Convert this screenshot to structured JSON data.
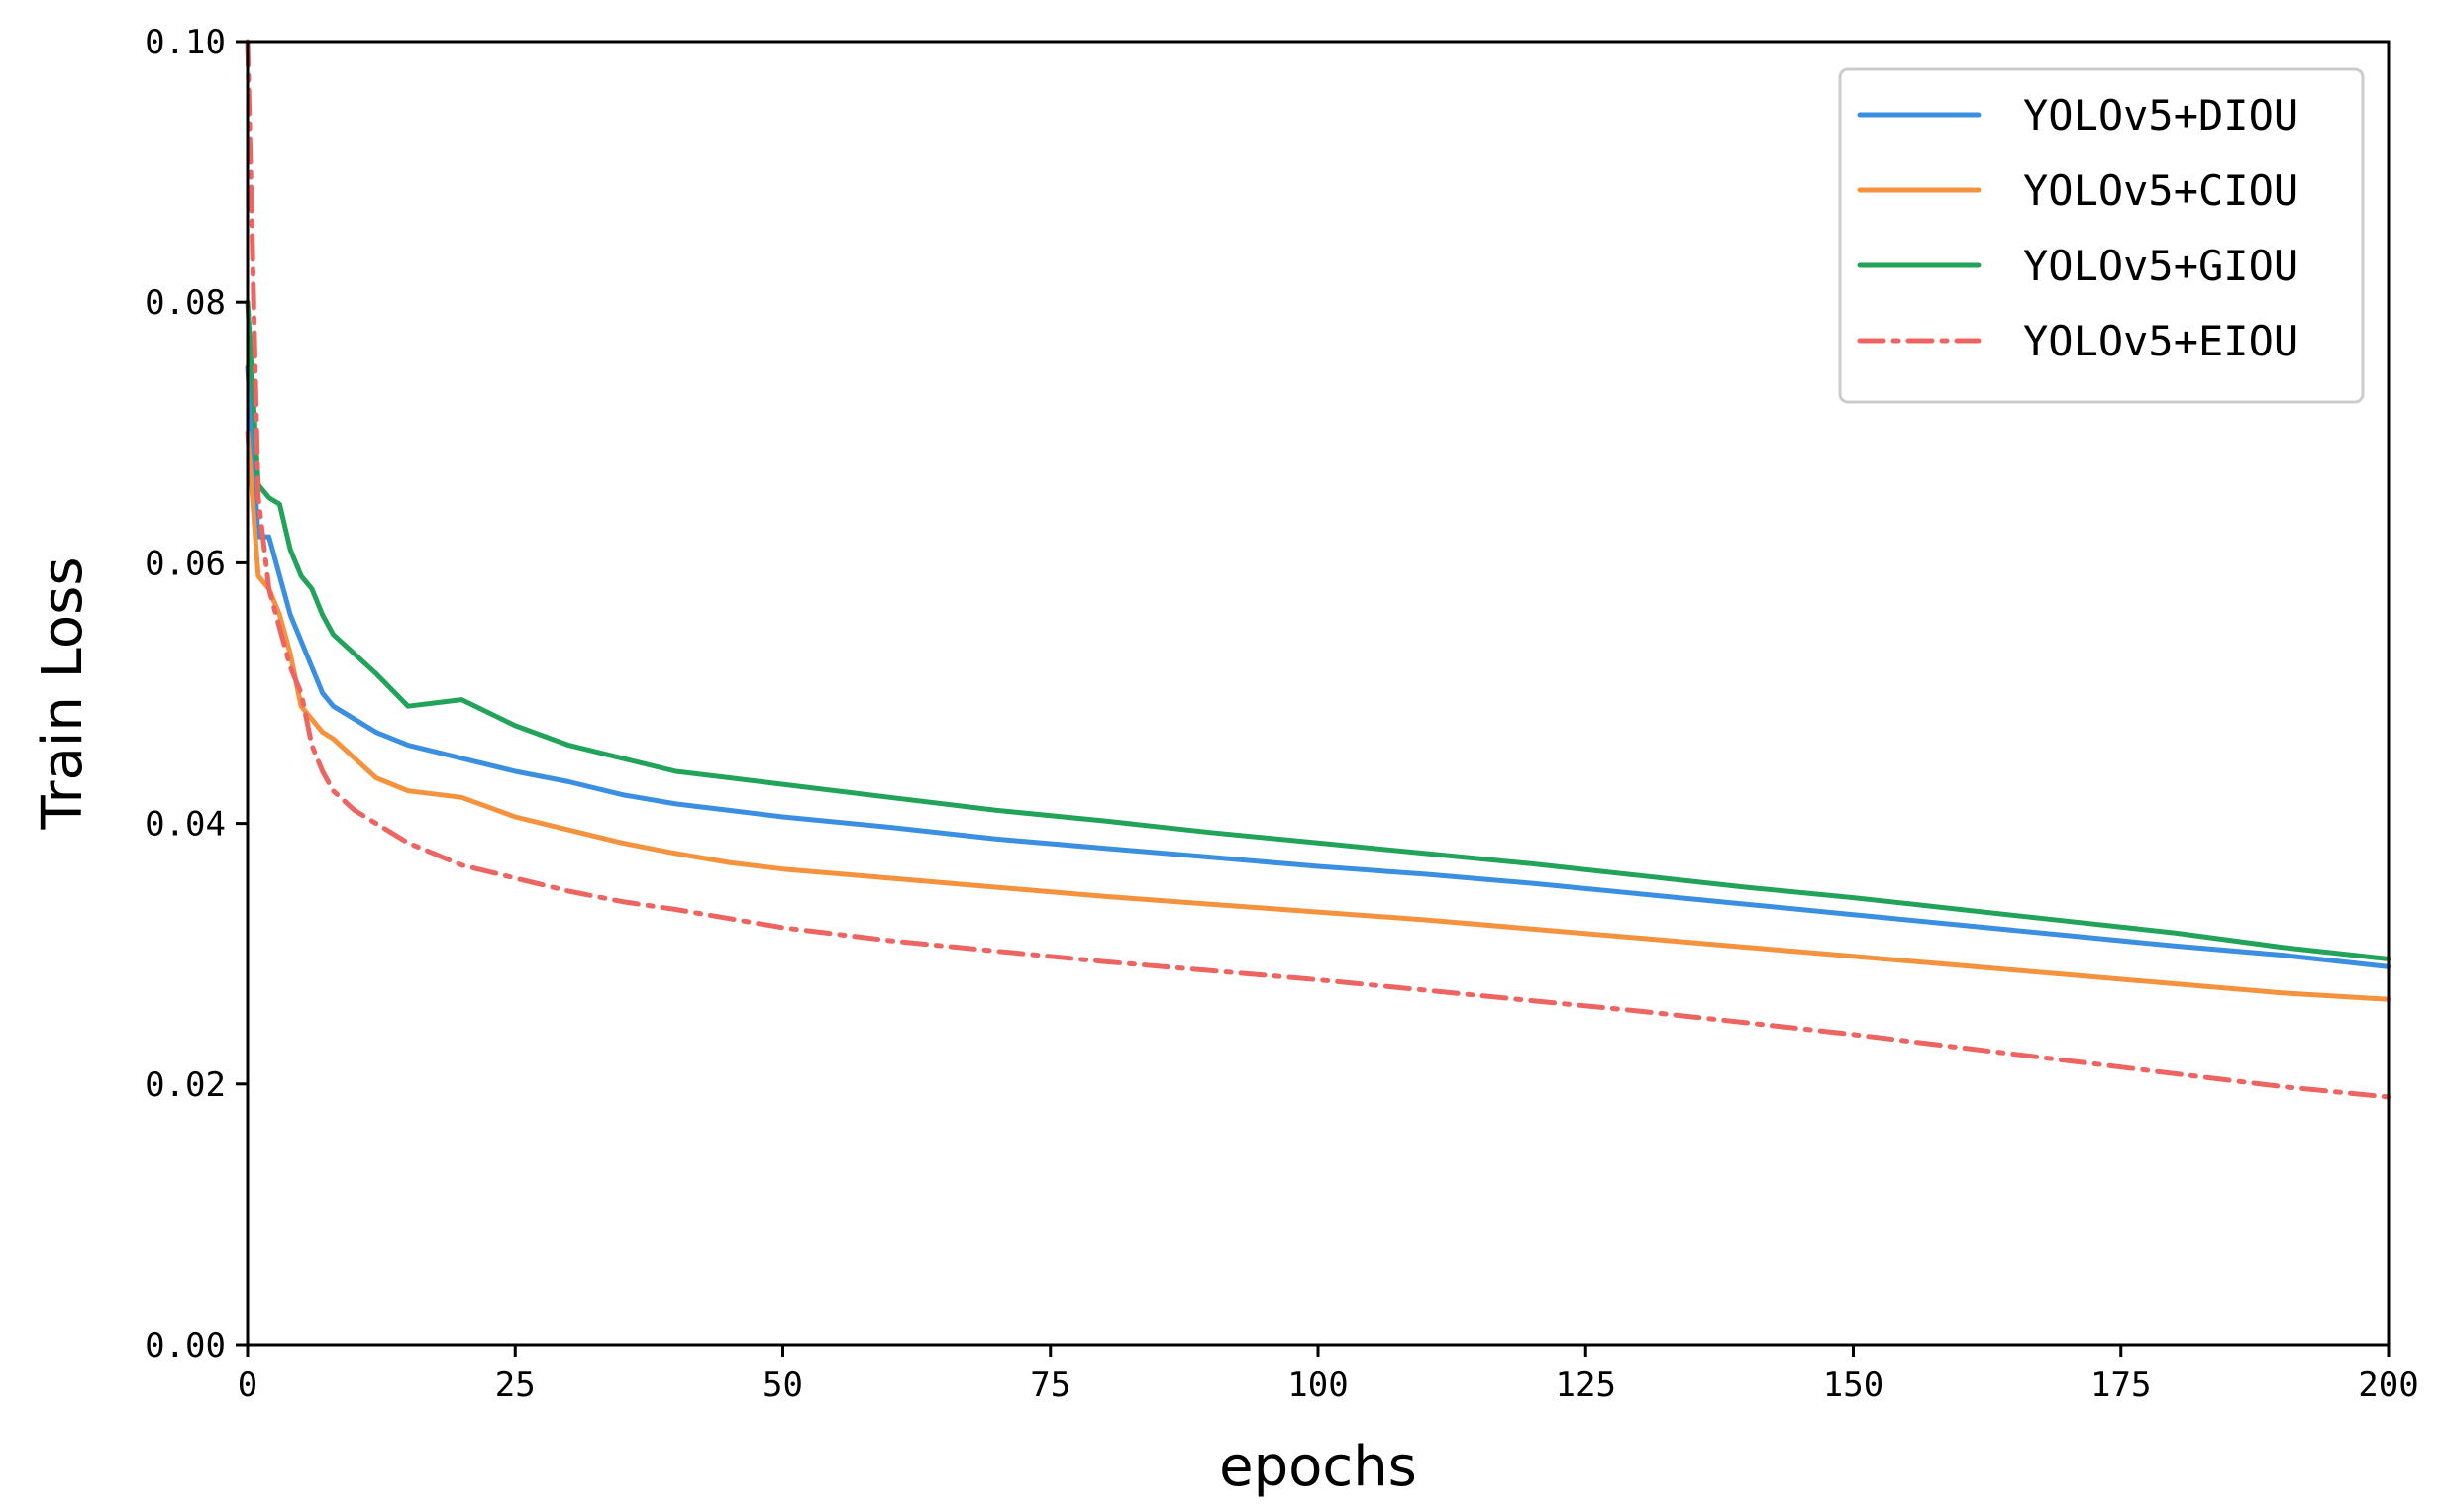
{
  "chart_data": {
    "type": "line",
    "title": "",
    "xlabel": "epochs",
    "ylabel": "Train Loss",
    "xlim": [
      0,
      200
    ],
    "ylim": [
      0.0,
      0.1
    ],
    "xticks": [
      0,
      25,
      50,
      75,
      100,
      125,
      150,
      175,
      200
    ],
    "xtick_labels": [
      "0",
      "25",
      "50",
      "75",
      "100",
      "125",
      "150",
      "175",
      "200"
    ],
    "yticks": [
      0.0,
      0.02,
      0.04,
      0.06,
      0.08,
      0.1
    ],
    "ytick_labels": [
      "0.00",
      "0.02",
      "0.04",
      "0.06",
      "0.08",
      "0.10"
    ],
    "grid": false,
    "legend_position": "top-right",
    "series": [
      {
        "name": "YOLOv5+DIOU",
        "color": "#3b8fe0",
        "dash": "solid",
        "x": [
          0,
          1,
          2,
          3,
          4,
          5,
          6,
          7,
          8,
          10,
          12,
          15,
          20,
          25,
          30,
          35,
          40,
          45,
          50,
          60,
          70,
          80,
          90,
          100,
          110,
          120,
          130,
          140,
          150,
          160,
          170,
          180,
          190,
          200
        ],
        "y": [
          0.075,
          0.062,
          0.062,
          0.059,
          0.056,
          0.054,
          0.052,
          0.05,
          0.049,
          0.048,
          0.047,
          0.046,
          0.045,
          0.044,
          0.0432,
          0.0422,
          0.0415,
          0.041,
          0.0405,
          0.0397,
          0.0388,
          0.0381,
          0.0374,
          0.0367,
          0.0361,
          0.0354,
          0.0346,
          0.0338,
          0.033,
          0.0322,
          0.0314,
          0.0306,
          0.0299,
          0.029
        ]
      },
      {
        "name": "YOLOv5+CIOU",
        "color": "#f5923e",
        "dash": "solid",
        "x": [
          0,
          1,
          2,
          3,
          4,
          5,
          6,
          7,
          8,
          10,
          12,
          15,
          20,
          25,
          30,
          35,
          40,
          45,
          50,
          60,
          70,
          80,
          90,
          100,
          110,
          120,
          130,
          140,
          150,
          160,
          170,
          180,
          190,
          200
        ],
        "y": [
          0.07,
          0.059,
          0.058,
          0.056,
          0.053,
          0.049,
          0.048,
          0.047,
          0.0465,
          0.045,
          0.0435,
          0.0425,
          0.042,
          0.0405,
          0.0395,
          0.0385,
          0.0377,
          0.037,
          0.0365,
          0.0358,
          0.0351,
          0.0344,
          0.0338,
          0.0332,
          0.0326,
          0.0319,
          0.0312,
          0.0305,
          0.0298,
          0.0291,
          0.0284,
          0.0277,
          0.027,
          0.0265
        ]
      },
      {
        "name": "YOLOv5+GIOU",
        "color": "#22a35a",
        "dash": "solid",
        "x": [
          0,
          1,
          2,
          3,
          4,
          5,
          6,
          7,
          8,
          10,
          12,
          15,
          20,
          25,
          30,
          35,
          40,
          45,
          50,
          60,
          70,
          80,
          90,
          100,
          110,
          120,
          130,
          140,
          150,
          160,
          170,
          180,
          190,
          200
        ],
        "y": [
          0.08,
          0.066,
          0.065,
          0.0645,
          0.061,
          0.059,
          0.058,
          0.056,
          0.0545,
          0.053,
          0.0515,
          0.049,
          0.0495,
          0.0475,
          0.046,
          0.045,
          0.044,
          0.0435,
          0.043,
          0.042,
          0.041,
          0.0402,
          0.0393,
          0.0385,
          0.0377,
          0.0369,
          0.036,
          0.0351,
          0.0343,
          0.0334,
          0.0325,
          0.0316,
          0.0305,
          0.0296
        ]
      },
      {
        "name": "YOLOv5+EIOU",
        "color": "#ee6461",
        "dash": "dashdot",
        "x": [
          0,
          1,
          2,
          3,
          4,
          5,
          6,
          7,
          8,
          10,
          12,
          15,
          20,
          25,
          30,
          35,
          40,
          45,
          50,
          60,
          70,
          80,
          90,
          100,
          110,
          120,
          130,
          140,
          150,
          160,
          170,
          180,
          190,
          200
        ],
        "y": [
          0.1,
          0.065,
          0.058,
          0.055,
          0.052,
          0.05,
          0.046,
          0.044,
          0.0425,
          0.041,
          0.04,
          0.0385,
          0.0368,
          0.0358,
          0.0348,
          0.034,
          0.0334,
          0.0327,
          0.032,
          0.031,
          0.0302,
          0.0294,
          0.0287,
          0.028,
          0.0272,
          0.0264,
          0.0256,
          0.0247,
          0.0238,
          0.0228,
          0.0218,
          0.0208,
          0.0198,
          0.019
        ]
      }
    ]
  }
}
